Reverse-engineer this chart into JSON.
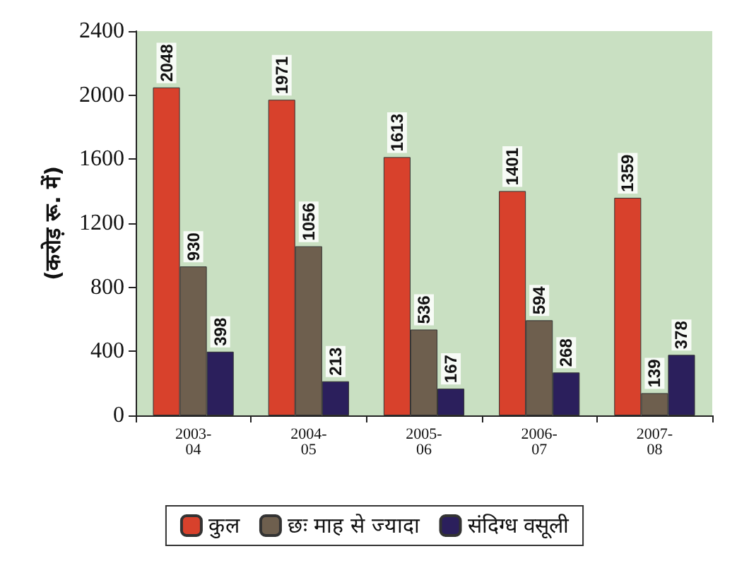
{
  "chart_data": {
    "type": "bar",
    "ylabel": "(करोड़ रू. में)",
    "categories": [
      "2003-04",
      "2004-05",
      "2005-06",
      "2006-07",
      "2007-08"
    ],
    "series": [
      {
        "name": "कुल",
        "color": "#d8412c",
        "values": [
          2048,
          1971,
          1613,
          1401,
          1359
        ]
      },
      {
        "name": "छः माह से ज्यादा",
        "color": "#6e5f4e",
        "values": [
          930,
          1056,
          536,
          594,
          139
        ]
      },
      {
        "name": "संदिग्ध वसूली",
        "color": "#2b1f5c",
        "values": [
          398,
          213,
          167,
          268,
          378
        ]
      }
    ],
    "ylim": [
      0,
      2400
    ],
    "yticks": [
      0,
      400,
      800,
      1200,
      1600,
      2000,
      2400
    ],
    "data_labels": true,
    "legend": "bottom",
    "grid": false
  }
}
